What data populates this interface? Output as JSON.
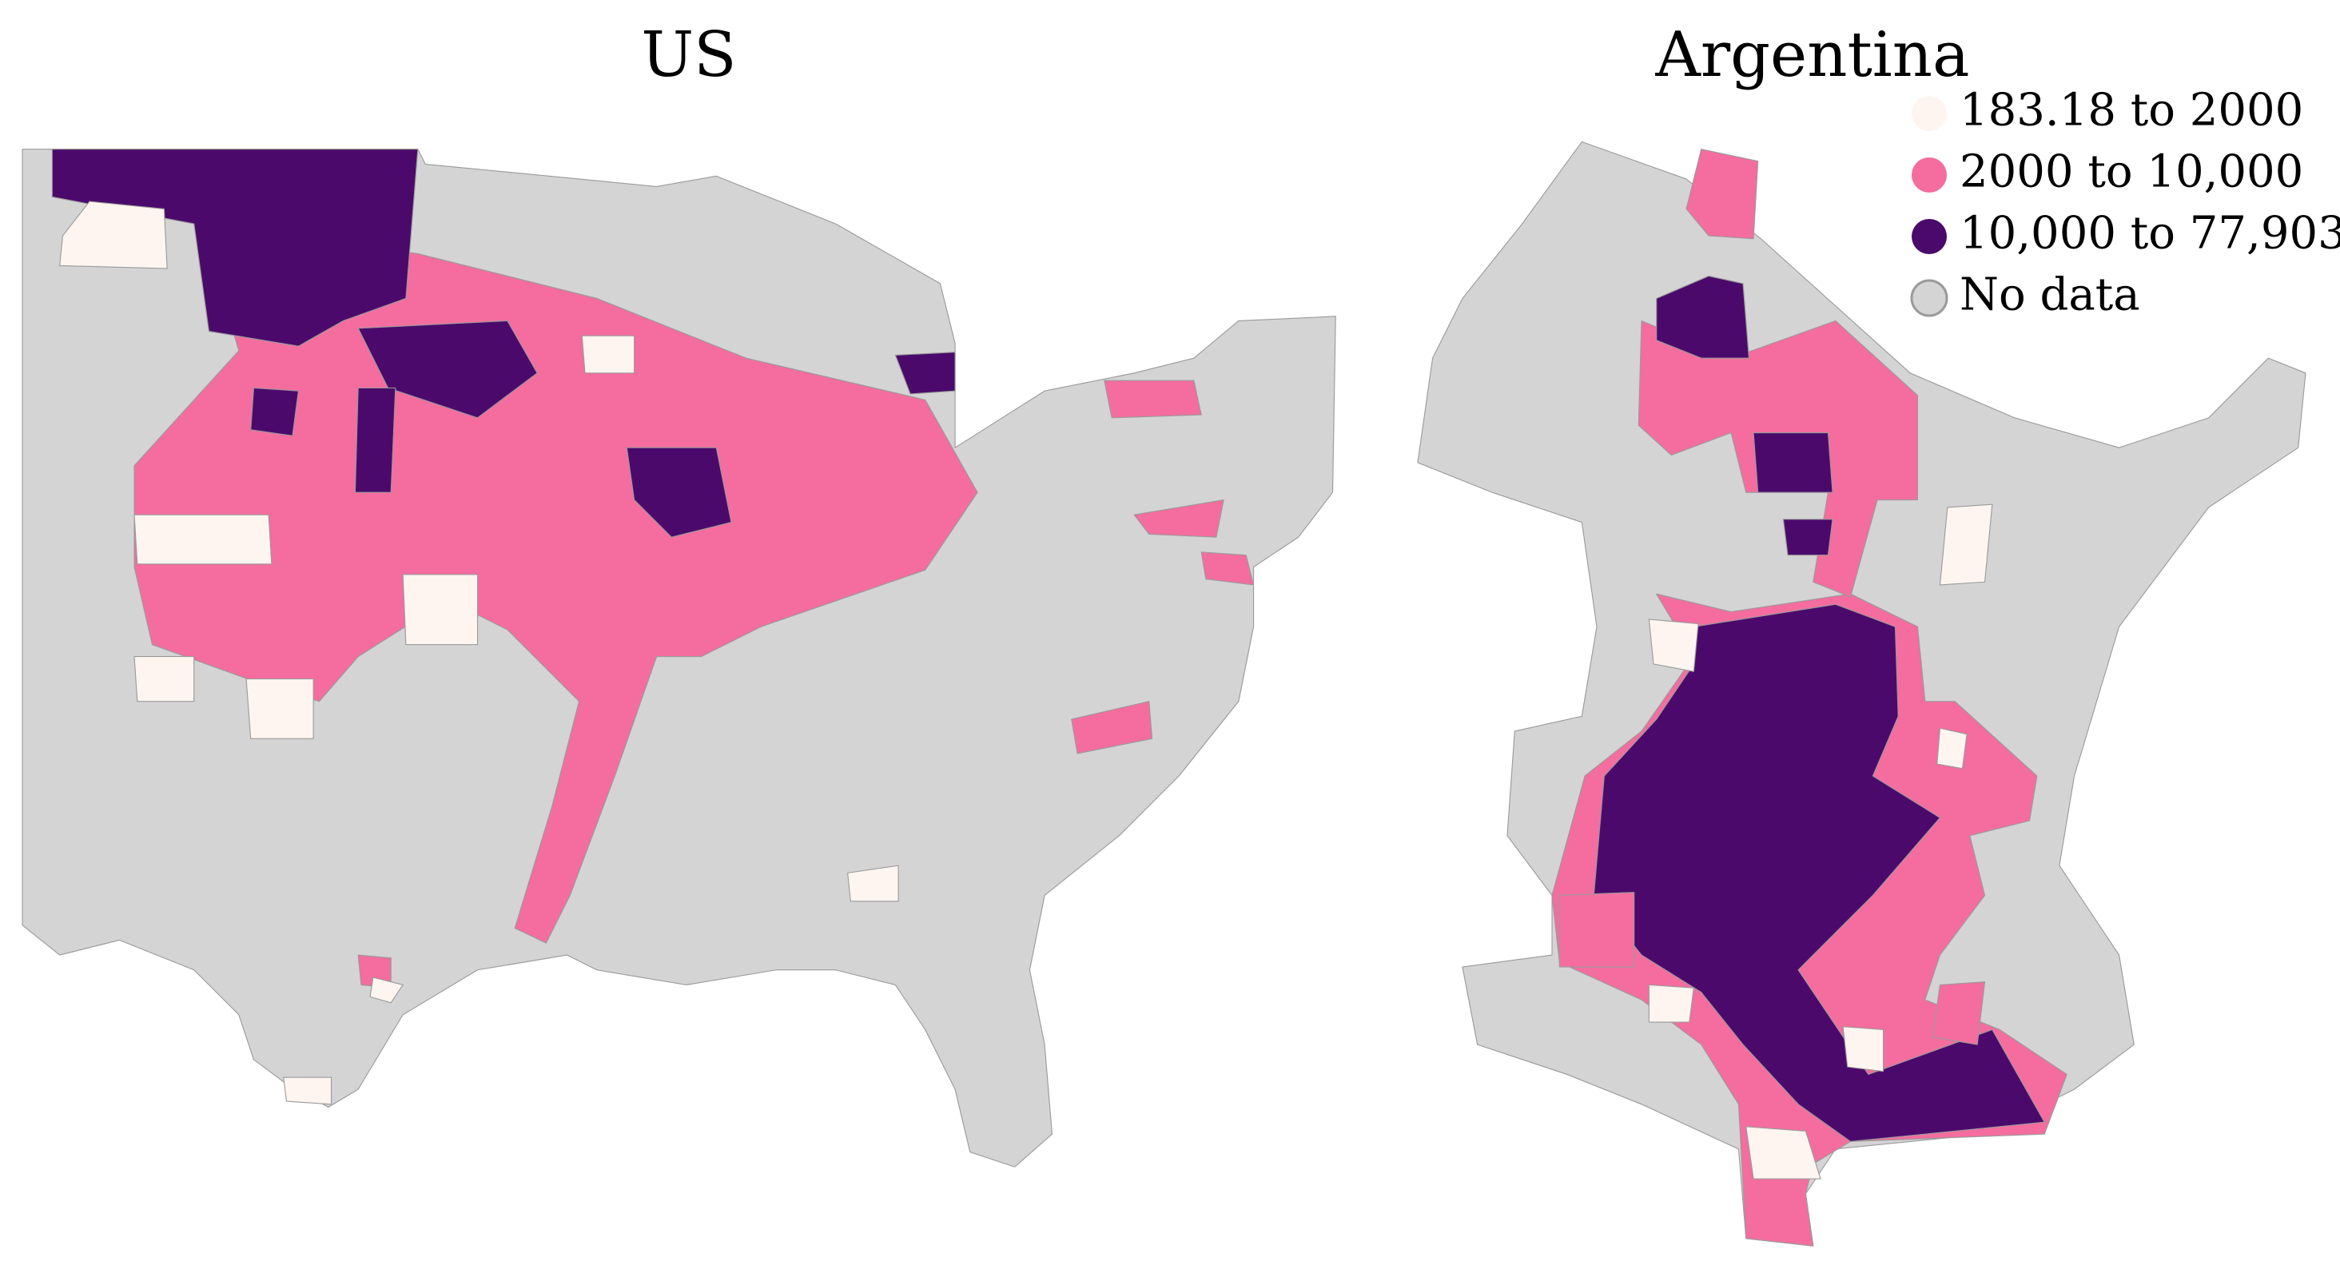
{
  "maps": [
    {
      "title": "US"
    },
    {
      "title": "Argentina"
    }
  ],
  "legend": {
    "items": [
      {
        "label": "183.18 to 2000",
        "color": "#fff5f0"
      },
      {
        "label": "2000 to 10,000",
        "color": "#f46d9e"
      },
      {
        "label": "10,000 to 77,903",
        "color": "#4b0a6b"
      },
      {
        "label": "No data",
        "color": "#d4d4d4"
      }
    ]
  }
}
